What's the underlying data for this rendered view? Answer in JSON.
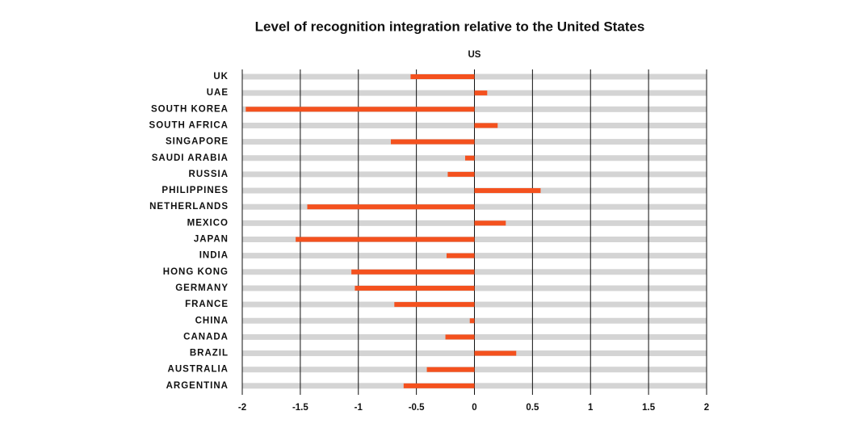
{
  "chart_data": {
    "type": "hbar",
    "title": "Level of recognition integration relative to the United States",
    "annotation": "US",
    "categories": [
      "UK",
      "UAE",
      "SOUTH KOREA",
      "SOUTH AFRICA",
      "SINGAPORE",
      "SAUDI ARABIA",
      "RUSSIA",
      "PHILIPPINES",
      "NETHERLANDS",
      "MEXICO",
      "JAPAN",
      "INDIA",
      "HONG KONG",
      "GERMANY",
      "FRANCE",
      "CHINA",
      "CANADA",
      "BRAZIL",
      "AUSTRALIA",
      "ARGENTINA"
    ],
    "values": [
      -0.55,
      0.11,
      -1.97,
      0.2,
      -0.72,
      -0.08,
      -0.23,
      0.57,
      -1.44,
      0.27,
      -1.54,
      -0.24,
      -1.06,
      -1.03,
      -0.69,
      -0.04,
      -0.25,
      0.36,
      -0.41,
      -0.61
    ],
    "color": "#f4511e",
    "track_color": "#d4d4d4",
    "xlim": [
      -2,
      2
    ],
    "xticks": [
      -2,
      -1.5,
      -1,
      -0.5,
      0,
      0.5,
      1,
      1.5,
      2
    ],
    "grid": true
  }
}
